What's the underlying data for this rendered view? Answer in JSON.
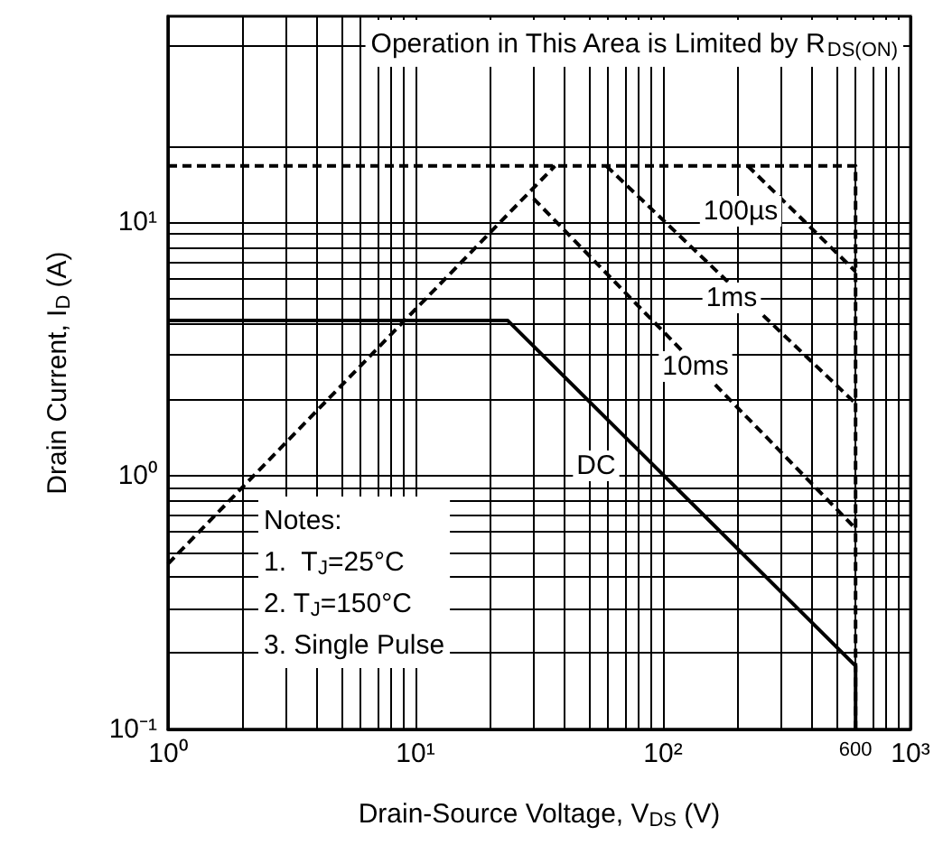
{
  "chart_data": {
    "type": "line",
    "xlabel": "Drain-Source Voltage, V$_{DS}$ (V)",
    "ylabel": "Drain Current, I$_{D}$ (A)",
    "log": "xy",
    "grid": true,
    "marker": "none",
    "xlim": [
      1,
      1000
    ],
    "ylim": [
      0.1,
      65
    ],
    "xticks": [
      {
        "value": 1,
        "label": "10⁰"
      },
      {
        "value": 2,
        "label": null
      },
      {
        "value": 3,
        "label": null
      },
      {
        "value": 4,
        "label": null
      },
      {
        "value": 5,
        "label": null
      },
      {
        "value": 6,
        "label": null
      },
      {
        "value": 7,
        "label": null
      },
      {
        "value": 8,
        "label": null
      },
      {
        "value": 9,
        "label": null
      },
      {
        "value": 10,
        "label": "10¹"
      },
      {
        "value": 20,
        "label": null
      },
      {
        "value": 30,
        "label": null
      },
      {
        "value": 40,
        "label": null
      },
      {
        "value": 50,
        "label": null
      },
      {
        "value": 60,
        "label": null
      },
      {
        "value": 70,
        "label": null
      },
      {
        "value": 80,
        "label": null
      },
      {
        "value": 90,
        "label": null
      },
      {
        "value": 100,
        "label": "10²"
      },
      {
        "value": 200,
        "label": null
      },
      {
        "value": 300,
        "label": null
      },
      {
        "value": 400,
        "label": null
      },
      {
        "value": 500,
        "label": null
      },
      {
        "value": 600,
        "label": "600"
      },
      {
        "value": 700,
        "label": null
      },
      {
        "value": 800,
        "label": null
      },
      {
        "value": 900,
        "label": null
      },
      {
        "value": 1000,
        "label": "10³"
      }
    ],
    "yticks": [
      {
        "value": 0.1,
        "label": "10⁻¹"
      },
      {
        "value": 0.2,
        "label": null
      },
      {
        "value": 0.3,
        "label": null
      },
      {
        "value": 0.4,
        "label": null
      },
      {
        "value": 0.5,
        "label": null
      },
      {
        "value": 0.6,
        "label": null
      },
      {
        "value": 0.7,
        "label": null
      },
      {
        "value": 0.8,
        "label": null
      },
      {
        "value": 0.9,
        "label": null
      },
      {
        "value": 1,
        "label": "10⁰"
      },
      {
        "value": 2,
        "label": null
      },
      {
        "value": 3,
        "label": null
      },
      {
        "value": 4,
        "label": null
      },
      {
        "value": 5,
        "label": null
      },
      {
        "value": 6,
        "label": null
      },
      {
        "value": 7,
        "label": null
      },
      {
        "value": 8,
        "label": null
      },
      {
        "value": 9,
        "label": null
      },
      {
        "value": 10,
        "label": "10¹"
      },
      {
        "value": 20,
        "label": null
      },
      {
        "value": 50,
        "label": null
      }
    ],
    "series": [
      {
        "color": "#000000",
        "line_style": "dashed",
        "x": [
          1,
          600,
          600
        ],
        "values": [
          16.7,
          16.7,
          0.1
        ]
      },
      {
        "color": "#000000",
        "line_style": "dashed",
        "x": [
          1,
          36.6
        ],
        "values": [
          0.45,
          16.7
        ]
      },
      {
        "color": "#000000",
        "line_style": "dashed",
        "x": [
          220,
          600
        ],
        "values": [
          16.7,
          6.4
        ]
      },
      {
        "color": "#000000",
        "line_style": "dashed",
        "x": [
          59,
          600
        ],
        "values": [
          16.7,
          1.93
        ]
      },
      {
        "color": "#000000",
        "line_style": "dashed",
        "x": [
          30,
          600
        ],
        "values": [
          12.4,
          0.62
        ]
      },
      {
        "color": "#000000",
        "line_style": "solid",
        "x": [
          1,
          23.6,
          600,
          600
        ],
        "values": [
          4.1,
          4.1,
          0.178,
          0.1
        ]
      }
    ],
    "annotations": [
      "Operation in This Area is Limited by R$_{DS(ON)}$",
      "Notes:\n1.  T$_{J}$=25°C\n2. T$_{J}$=150°C\n3. Single Pulse",
      "100µs",
      "1ms",
      "10ms",
      "DC"
    ]
  }
}
